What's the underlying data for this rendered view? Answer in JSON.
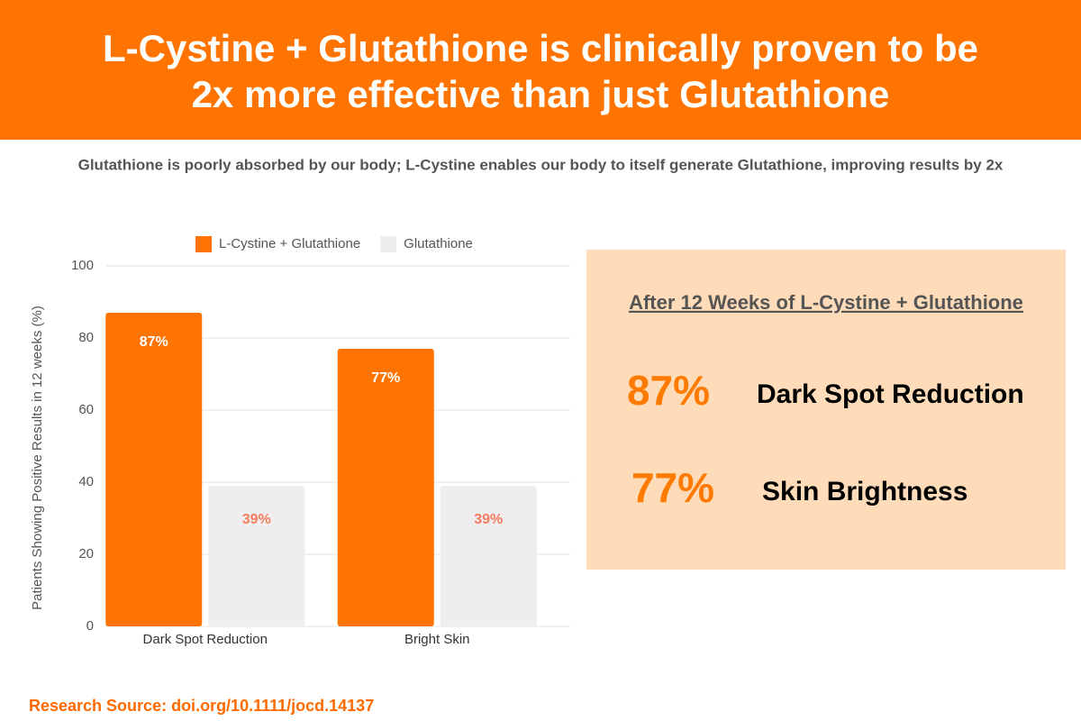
{
  "header": {
    "title": [
      "L-Cystine + Glutathione is clinically proven to be",
      "2x more effective than just Glutathione"
    ],
    "subtitle": "Glutathione is poorly absorbed by our body; L-Cystine enables our body to itself generate Glutathione, improving results by 2x"
  },
  "chart_data": {
    "type": "bar",
    "ylabel": "Patients Showing Positive Results in 12 weeks (%)",
    "categories": [
      "Dark Spot Reduction",
      "Bright Skin"
    ],
    "series": [
      {
        "name": "L-Cystine + Glutathione",
        "color": "#ff7400",
        "label_color": "#ffffff",
        "values": [
          87,
          77
        ],
        "value_labels": [
          "87%",
          "77%"
        ]
      },
      {
        "name": "Glutathione",
        "color": "#efeded",
        "label_color": "#f47c5f",
        "values": [
          39,
          39
        ],
        "value_labels": [
          "39%",
          "39%"
        ]
      }
    ],
    "ylim": [
      0,
      100
    ],
    "yticks": [
      0,
      20,
      40,
      60,
      80,
      100
    ],
    "grid": true,
    "legend": "top"
  },
  "summary": {
    "title": "After 12 Weeks of L-Cystine + Glutathione",
    "items": [
      {
        "value": "87%",
        "label": "Dark Spot Reduction"
      },
      {
        "value": "77%",
        "label": "Skin Brightness"
      }
    ]
  },
  "footer": {
    "source": "Research Source: doi.org/10.1111/jocd.14137"
  }
}
